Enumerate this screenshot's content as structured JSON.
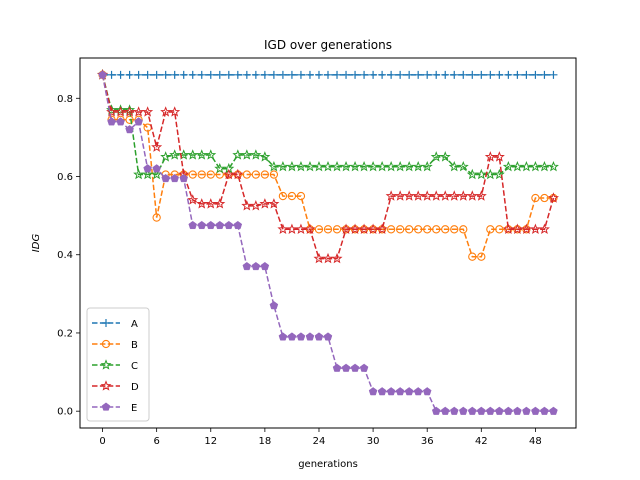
{
  "chart_data": {
    "type": "line",
    "title": "IGD over generations",
    "xlabel": "generations",
    "ylabel": "IDG",
    "xlim": [
      -2.5,
      52.5
    ],
    "ylim": [
      -0.043,
      0.903
    ],
    "xticks": [
      0,
      6,
      12,
      18,
      24,
      30,
      36,
      42,
      48
    ],
    "yticks": [
      0.0,
      0.2,
      0.4,
      0.6,
      0.8
    ],
    "ytick_labels": [
      "0.0",
      "0.2",
      "0.4",
      "0.6",
      "0.8"
    ],
    "grid": false,
    "legend": "lower-left",
    "x": [
      0,
      1,
      2,
      3,
      4,
      5,
      6,
      7,
      8,
      9,
      10,
      11,
      12,
      13,
      14,
      15,
      16,
      17,
      18,
      19,
      20,
      21,
      22,
      23,
      24,
      25,
      26,
      27,
      28,
      29,
      30,
      31,
      32,
      33,
      34,
      35,
      36,
      37,
      38,
      39,
      40,
      41,
      42,
      43,
      44,
      45,
      46,
      47,
      48,
      49,
      50
    ],
    "series": [
      {
        "name": "A",
        "color": "#1f77b4",
        "marker": "plus",
        "values": [
          0.86,
          0.86,
          0.86,
          0.86,
          0.86,
          0.86,
          0.86,
          0.86,
          0.86,
          0.86,
          0.86,
          0.86,
          0.86,
          0.86,
          0.86,
          0.86,
          0.86,
          0.86,
          0.86,
          0.86,
          0.86,
          0.86,
          0.86,
          0.86,
          0.86,
          0.86,
          0.86,
          0.86,
          0.86,
          0.86,
          0.86,
          0.86,
          0.86,
          0.86,
          0.86,
          0.86,
          0.86,
          0.86,
          0.86,
          0.86,
          0.86,
          0.86,
          0.86,
          0.86,
          0.86,
          0.86,
          0.86,
          0.86,
          0.86,
          0.86,
          0.86
        ]
      },
      {
        "name": "B",
        "color": "#ff7f0e",
        "marker": "circle-open",
        "values": [
          0.86,
          0.745,
          0.745,
          0.745,
          0.745,
          0.725,
          0.495,
          0.605,
          0.605,
          0.605,
          0.605,
          0.605,
          0.605,
          0.605,
          0.605,
          0.605,
          0.605,
          0.605,
          0.605,
          0.605,
          0.55,
          0.55,
          0.55,
          0.465,
          0.465,
          0.465,
          0.465,
          0.465,
          0.465,
          0.465,
          0.465,
          0.465,
          0.465,
          0.465,
          0.465,
          0.465,
          0.465,
          0.465,
          0.465,
          0.465,
          0.465,
          0.395,
          0.395,
          0.465,
          0.465,
          0.465,
          0.465,
          0.465,
          0.545,
          0.545,
          0.545
        ]
      },
      {
        "name": "C",
        "color": "#2ca02c",
        "marker": "star-open",
        "values": [
          0.86,
          0.77,
          0.77,
          0.77,
          0.605,
          0.605,
          0.605,
          0.65,
          0.655,
          0.655,
          0.655,
          0.655,
          0.655,
          0.62,
          0.62,
          0.655,
          0.655,
          0.655,
          0.65,
          0.625,
          0.625,
          0.625,
          0.625,
          0.625,
          0.625,
          0.625,
          0.625,
          0.625,
          0.625,
          0.625,
          0.625,
          0.625,
          0.625,
          0.625,
          0.625,
          0.625,
          0.625,
          0.65,
          0.65,
          0.625,
          0.625,
          0.605,
          0.605,
          0.605,
          0.605,
          0.625,
          0.625,
          0.625,
          0.625,
          0.625,
          0.625
        ]
      },
      {
        "name": "D",
        "color": "#d62728",
        "marker": "star-open",
        "values": [
          0.86,
          0.765,
          0.765,
          0.765,
          0.765,
          0.765,
          0.675,
          0.765,
          0.765,
          0.605,
          0.54,
          0.53,
          0.53,
          0.53,
          0.605,
          0.605,
          0.525,
          0.525,
          0.53,
          0.53,
          0.465,
          0.465,
          0.465,
          0.465,
          0.39,
          0.39,
          0.39,
          0.465,
          0.465,
          0.465,
          0.465,
          0.465,
          0.55,
          0.55,
          0.55,
          0.55,
          0.55,
          0.55,
          0.55,
          0.55,
          0.55,
          0.55,
          0.55,
          0.65,
          0.65,
          0.465,
          0.465,
          0.465,
          0.465,
          0.465,
          0.545
        ]
      },
      {
        "name": "E",
        "color": "#9467bd",
        "marker": "pentagon",
        "values": [
          0.86,
          0.74,
          0.74,
          0.72,
          0.74,
          0.62,
          0.62,
          0.595,
          0.595,
          0.595,
          0.475,
          0.475,
          0.475,
          0.475,
          0.475,
          0.475,
          0.37,
          0.37,
          0.37,
          0.27,
          0.19,
          0.19,
          0.19,
          0.19,
          0.19,
          0.19,
          0.11,
          0.11,
          0.11,
          0.11,
          0.05,
          0.05,
          0.05,
          0.05,
          0.05,
          0.05,
          0.05,
          0.0,
          0.0,
          0.0,
          0.0,
          0.0,
          0.0,
          0.0,
          0.0,
          0.0,
          0.0,
          0.0,
          0.0,
          0.0,
          0.0
        ]
      }
    ]
  }
}
